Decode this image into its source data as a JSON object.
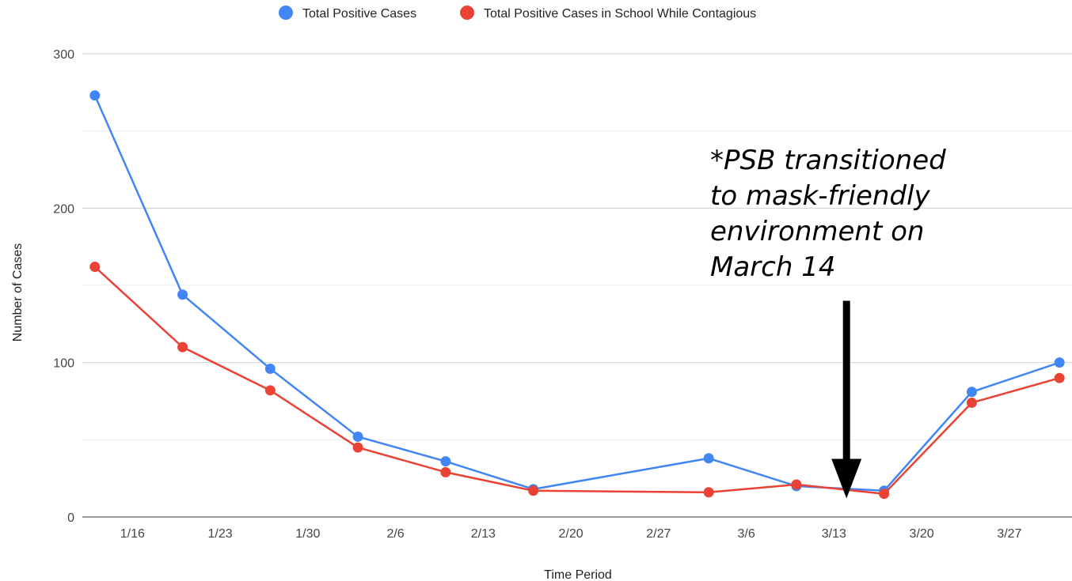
{
  "chart_data": {
    "type": "line",
    "title": "",
    "xlabel": "Time Period",
    "ylabel": "Number of Cases",
    "ylim": [
      0,
      300
    ],
    "yticks": [
      0,
      100,
      200,
      300
    ],
    "grid": true,
    "legend_position": "top",
    "x": [
      "2022-01-13",
      "2022-01-20",
      "2022-01-27",
      "2022-02-03",
      "2022-02-10",
      "2022-02-17",
      "2022-03-03",
      "2022-03-10",
      "2022-03-17",
      "2022-03-24",
      "2022-03-31"
    ],
    "xlim": [
      "2022-01-12",
      "2022-04-01"
    ],
    "xtick_labels": [
      "1/16",
      "1/23",
      "1/30",
      "2/6",
      "2/13",
      "2/20",
      "2/27",
      "3/6",
      "3/13",
      "3/20",
      "3/27"
    ],
    "xtick_dates": [
      "2022-01-16",
      "2022-01-23",
      "2022-01-30",
      "2022-02-06",
      "2022-02-13",
      "2022-02-20",
      "2022-02-27",
      "2022-03-06",
      "2022-03-13",
      "2022-03-20",
      "2022-03-27"
    ],
    "series": [
      {
        "name": "Total Positive Cases",
        "color": "#4285f4",
        "values": [
          273,
          144,
          96,
          52,
          36,
          18,
          38,
          20,
          17,
          81,
          100
        ]
      },
      {
        "name": "Total Positive Cases in School While Contagious",
        "color": "#ea4335",
        "values": [
          162,
          110,
          82,
          45,
          29,
          17,
          16,
          21,
          15,
          74,
          90
        ]
      }
    ],
    "annotation": {
      "lines": [
        "*PSB transitioned",
        "to mask-friendly",
        "environment on",
        "March 14"
      ],
      "arrow_x": "2022-03-14",
      "arrow_from_y": 140,
      "arrow_to_y": 12,
      "color": "#000000"
    }
  }
}
